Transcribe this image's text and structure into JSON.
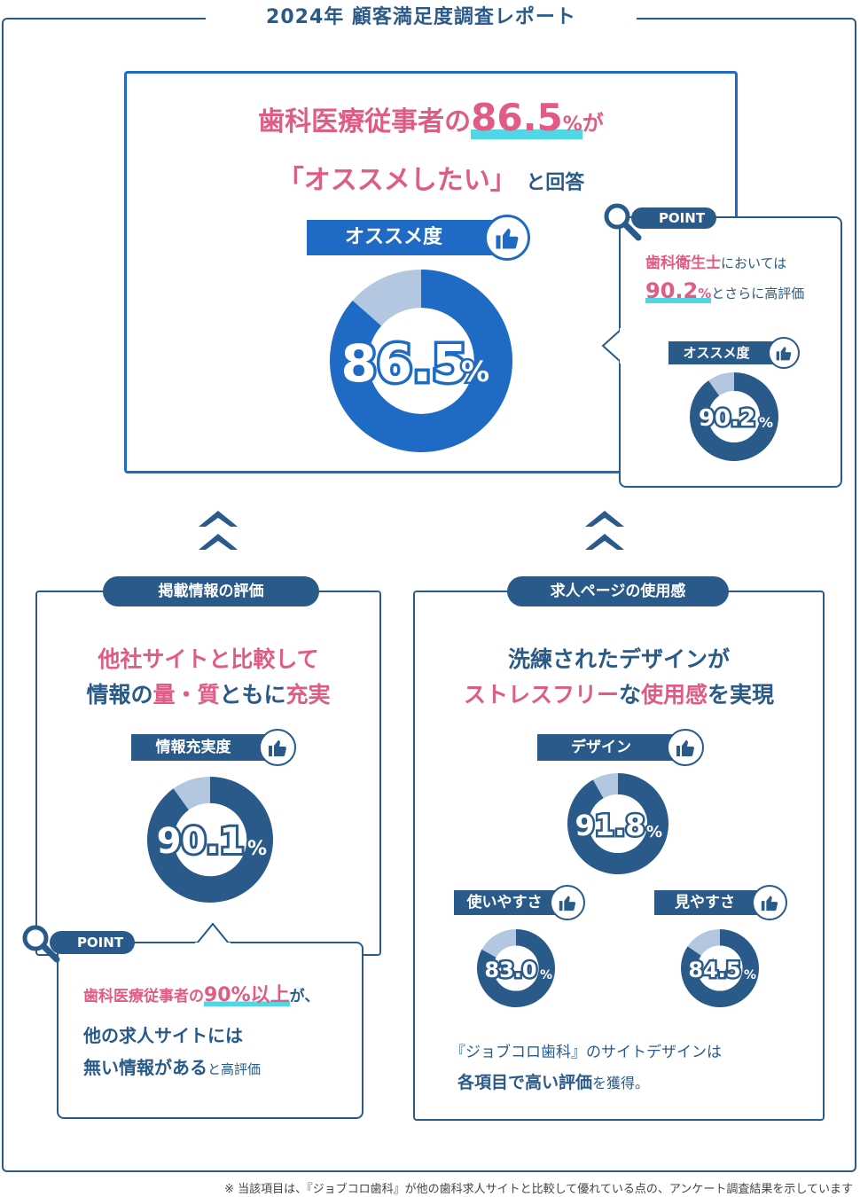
{
  "report_title": "2024年 顧客満足度調査レポート",
  "main": {
    "headline_1a": "歯科医療従事者の",
    "headline_1b": "86.5",
    "headline_1c": "%",
    "headline_1d": "が",
    "headline_2a": "「オススメしたい」",
    "headline_2b": "と回答",
    "label": "オススメ度",
    "value_text": "86.5",
    "unit": "%"
  },
  "point_main": {
    "badge": "POINT",
    "line1a": "歯科衛生士",
    "line1b": "においては",
    "line2a": "90.2",
    "line2b": "%",
    "line2c": "とさらに高評価",
    "label": "オススメ度",
    "value_text": "90.2",
    "unit": "%"
  },
  "left_section": {
    "pill": "掲載情報の評価",
    "headline_1": "他社サイトと比較して",
    "headline_2a": "情報の",
    "headline_2b": "量・質",
    "headline_2c": "ともに",
    "headline_2d": "充実",
    "label": "情報充実度",
    "value_text": "90.1",
    "unit": "%"
  },
  "point_left": {
    "badge": "POINT",
    "line1a": "歯科医療従事者の",
    "line1b": "90%以上",
    "line1c": "が、",
    "line2": "他の求人サイトには",
    "line3a": "無い情報がある",
    "line3b": "と高評価"
  },
  "right_section": {
    "pill": "求人ページの使用感",
    "headline_1": "洗練されたデザインが",
    "headline_2a": "ストレスフリー",
    "headline_2b": "な",
    "headline_2c": "使用感",
    "headline_2d": "を実現",
    "design_label": "デザイン",
    "design_value_text": "91.8",
    "usability_label": "使いやすさ",
    "usability_value_text": "83.0",
    "visibility_label": "見やすさ",
    "visibility_value_text": "84.5",
    "unit": "%",
    "footer_1": "『ジョブコロ歯科』のサイトデザインは",
    "footer_2a": "各項目で高い評価",
    "footer_2b": "を獲得。"
  },
  "footnote": "※ 当該項目は、『ジョブコロ歯科』が他の歯科求人サイトと比較して優れている点の、アンケート調査結果を示しています",
  "colors": {
    "navy": "#2a5a8a",
    "blue": "#1e6ac4",
    "pink": "#e05b85",
    "cyan": "#4fd7e6",
    "light": "#b3c8e0"
  },
  "icons": [
    "thumbs-up-icon",
    "magnifier-icon",
    "chevron-up-icon"
  ],
  "chart_data": [
    {
      "type": "pie",
      "name": "オススメ度",
      "values": [
        86.5,
        13.5
      ],
      "unit": "%"
    },
    {
      "type": "pie",
      "name": "オススメ度（歯科衛生士）",
      "values": [
        90.2,
        9.8
      ],
      "unit": "%"
    },
    {
      "type": "pie",
      "name": "情報充実度",
      "values": [
        90.1,
        9.9
      ],
      "unit": "%"
    },
    {
      "type": "pie",
      "name": "デザイン",
      "values": [
        91.8,
        8.2
      ],
      "unit": "%"
    },
    {
      "type": "pie",
      "name": "使いやすさ",
      "values": [
        83.0,
        17.0
      ],
      "unit": "%"
    },
    {
      "type": "pie",
      "name": "見やすさ",
      "values": [
        84.5,
        15.5
      ],
      "unit": "%"
    }
  ]
}
